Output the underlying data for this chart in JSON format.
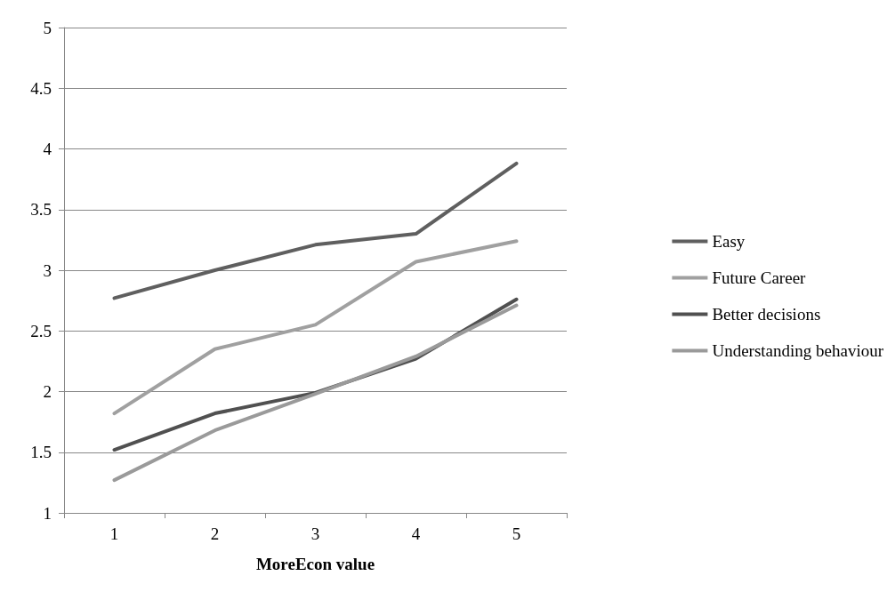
{
  "chart_data": {
    "type": "line",
    "xlabel": "MoreEcon value",
    "categories": [
      "1",
      "2",
      "3",
      "4",
      "5"
    ],
    "series": [
      {
        "name": "Easy",
        "color": "#5f5f5f",
        "values": [
          2.77,
          3.0,
          3.21,
          3.3,
          3.88
        ]
      },
      {
        "name": "Future Career",
        "color": "#a0a0a0",
        "values": [
          1.82,
          2.35,
          2.55,
          3.07,
          3.24
        ]
      },
      {
        "name": "Better decisions",
        "color": "#505050",
        "values": [
          1.52,
          1.82,
          1.99,
          2.27,
          2.76
        ]
      },
      {
        "name": "Understanding behaviour",
        "color": "#9a9a9a",
        "values": [
          1.27,
          1.68,
          1.98,
          2.29,
          2.71
        ]
      }
    ],
    "ylim": [
      1,
      5
    ],
    "yticks": [
      1,
      1.5,
      2,
      2.5,
      3,
      3.5,
      4,
      4.5,
      5
    ],
    "grid": "y",
    "legend": "right",
    "marker": "none",
    "line_style": "solid"
  }
}
